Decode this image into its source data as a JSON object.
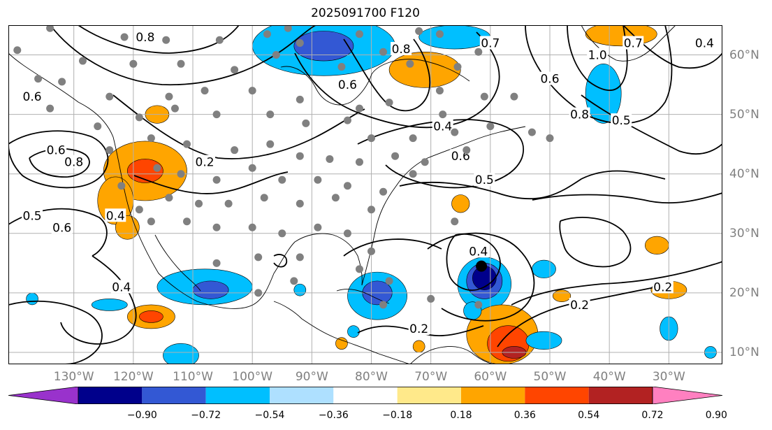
{
  "title": "2025091700 F120",
  "lon_labels": [
    {
      "text": "130°W",
      "lon": -130
    },
    {
      "text": "120°W",
      "lon": -120
    },
    {
      "text": "110°W",
      "lon": -110
    },
    {
      "text": "100°W",
      "lon": -100
    },
    {
      "text": "90°W",
      "lon": -90
    },
    {
      "text": "80°W",
      "lon": -80
    },
    {
      "text": "70°W",
      "lon": -70
    },
    {
      "text": "60°W",
      "lon": -60
    },
    {
      "text": "50°W",
      "lon": -50
    },
    {
      "text": "40°W",
      "lon": -40
    },
    {
      "text": "30°W",
      "lon": -30
    }
  ],
  "lat_labels": [
    {
      "text": "60°N",
      "lat": 60
    },
    {
      "text": "50°N",
      "lat": 50
    },
    {
      "text": "40°N",
      "lat": 40
    },
    {
      "text": "30°N",
      "lat": 30
    },
    {
      "text": "20°N",
      "lat": 20
    },
    {
      "text": "10°N",
      "lat": 10
    }
  ],
  "map_extent": {
    "lon_min": -141,
    "lon_max": -21,
    "lat_min": 8,
    "lat_max": 65
  },
  "contour_labels": [
    {
      "text": "0.8",
      "lon": -118,
      "lat": 63
    },
    {
      "text": "0.6",
      "lon": -133,
      "lat": 44
    },
    {
      "text": "0.8",
      "lon": -130,
      "lat": 42
    },
    {
      "text": "0.5",
      "lon": -137,
      "lat": 33
    },
    {
      "text": "0.6",
      "lon": -132,
      "lat": 31
    },
    {
      "text": "0.6",
      "lon": -137,
      "lat": 53
    },
    {
      "text": "0.4",
      "lon": -123,
      "lat": 33
    },
    {
      "text": "0.4",
      "lon": -122,
      "lat": 21
    },
    {
      "text": "0.2",
      "lon": -108,
      "lat": 42
    },
    {
      "text": "0.6",
      "lon": -84,
      "lat": 55
    },
    {
      "text": "0.8",
      "lon": -75,
      "lat": 61
    },
    {
      "text": "0.4",
      "lon": -68,
      "lat": 48
    },
    {
      "text": "0.6",
      "lon": -65,
      "lat": 43
    },
    {
      "text": "0.5",
      "lon": -61,
      "lat": 39
    },
    {
      "text": "0.4",
      "lon": -62,
      "lat": 27
    },
    {
      "text": "0.2",
      "lon": -72,
      "lat": 14
    },
    {
      "text": "0.2",
      "lon": -45,
      "lat": 18
    },
    {
      "text": "0.7",
      "lon": -60,
      "lat": 62
    },
    {
      "text": "0.6",
      "lon": -50,
      "lat": 56
    },
    {
      "text": "0.8",
      "lon": -45,
      "lat": 50
    },
    {
      "text": "0.5",
      "lon": -38,
      "lat": 49
    },
    {
      "text": "1.0",
      "lon": -42,
      "lat": 60
    },
    {
      "text": "0.7",
      "lon": -36,
      "lat": 62
    },
    {
      "text": "0.4",
      "lon": -24,
      "lat": 62
    },
    {
      "text": "0.2",
      "lon": -31,
      "lat": 21
    }
  ],
  "colorbar": {
    "ticks": [
      "−0.90",
      "−0.72",
      "−0.54",
      "−0.36",
      "−0.18",
      "0.18",
      "0.36",
      "0.54",
      "0.72",
      "0.90"
    ],
    "colors": [
      "#9932cc",
      "#00008b",
      "#3358d4",
      "#00bfff",
      "#aee0ff",
      "#ffffff",
      "#ffe98a",
      "#ffa500",
      "#ff4500",
      "#b22222",
      "#ff80c0"
    ]
  },
  "shading": [
    {
      "lon": -88,
      "lat": 61.5,
      "rx": 12,
      "ry": 5,
      "color": "#00bfff"
    },
    {
      "lon": -88,
      "lat": 61.5,
      "rx": 5,
      "ry": 2.5,
      "color": "#3358d4"
    },
    {
      "lon": -66,
      "lat": 63,
      "rx": 6,
      "ry": 2,
      "color": "#00bfff"
    },
    {
      "lon": -71,
      "lat": 57.5,
      "rx": 6,
      "ry": 3,
      "color": "#ffa500"
    },
    {
      "lon": -38,
      "lat": 63.5,
      "rx": 6,
      "ry": 2,
      "color": "#ffa500"
    },
    {
      "lon": -41,
      "lat": 53.5,
      "rx": 3,
      "ry": 5,
      "color": "#00bfff"
    },
    {
      "lon": -118,
      "lat": 40.5,
      "rx": 7,
      "ry": 5,
      "color": "#ffa500"
    },
    {
      "lon": -118,
      "lat": 40.5,
      "rx": 3,
      "ry": 2,
      "color": "#ff4500"
    },
    {
      "lon": -116,
      "lat": 50,
      "rx": 2,
      "ry": 1.5,
      "color": "#ffa500"
    },
    {
      "lon": -123,
      "lat": 35.5,
      "rx": 3,
      "ry": 4,
      "color": "#ffa500"
    },
    {
      "lon": -121,
      "lat": 31,
      "rx": 2,
      "ry": 2,
      "color": "#ffa500"
    },
    {
      "lon": -108,
      "lat": 21,
      "rx": 8,
      "ry": 3,
      "color": "#00bfff"
    },
    {
      "lon": -107,
      "lat": 20.5,
      "rx": 3,
      "ry": 1.5,
      "color": "#3358d4"
    },
    {
      "lon": -117,
      "lat": 16,
      "rx": 4,
      "ry": 2,
      "color": "#ffa500"
    },
    {
      "lon": -117,
      "lat": 16,
      "rx": 2,
      "ry": 1,
      "color": "#ff4500"
    },
    {
      "lon": -112,
      "lat": 9.5,
      "rx": 3,
      "ry": 2,
      "color": "#00bfff"
    },
    {
      "lon": -124,
      "lat": 18,
      "rx": 3,
      "ry": 1,
      "color": "#00bfff"
    },
    {
      "lon": -137,
      "lat": 19,
      "rx": 1,
      "ry": 1,
      "color": "#00bfff"
    },
    {
      "lon": -79,
      "lat": 19.5,
      "rx": 5,
      "ry": 4,
      "color": "#00bfff"
    },
    {
      "lon": -79,
      "lat": 20,
      "rx": 2.5,
      "ry": 2,
      "color": "#3358d4"
    },
    {
      "lon": -61,
      "lat": 21.5,
      "rx": 4.5,
      "ry": 4.5,
      "color": "#00bfff"
    },
    {
      "lon": -61,
      "lat": 22,
      "rx": 3,
      "ry": 3,
      "color": "#3358d4"
    },
    {
      "lon": -61,
      "lat": 22.5,
      "rx": 2,
      "ry": 2,
      "color": "#00008b"
    },
    {
      "lon": -58,
      "lat": 13,
      "rx": 6,
      "ry": 5,
      "color": "#ffa500"
    },
    {
      "lon": -57,
      "lat": 11.5,
      "rx": 3.5,
      "ry": 3,
      "color": "#ff4500"
    },
    {
      "lon": -56,
      "lat": 10,
      "rx": 2,
      "ry": 1,
      "color": "#b22222"
    },
    {
      "lon": -63,
      "lat": 17,
      "rx": 1.5,
      "ry": 1.5,
      "color": "#00bfff"
    },
    {
      "lon": -51,
      "lat": 24,
      "rx": 2,
      "ry": 1.5,
      "color": "#00bfff"
    },
    {
      "lon": -51,
      "lat": 12,
      "rx": 3,
      "ry": 1.5,
      "color": "#00bfff"
    },
    {
      "lon": -32,
      "lat": 28,
      "rx": 2,
      "ry": 1.5,
      "color": "#ffa500"
    },
    {
      "lon": -30,
      "lat": 20.5,
      "rx": 3,
      "ry": 1.5,
      "color": "#ffa500"
    },
    {
      "lon": -30,
      "lat": 14,
      "rx": 1.5,
      "ry": 2,
      "color": "#00bfff"
    },
    {
      "lon": -65,
      "lat": 35,
      "rx": 1.5,
      "ry": 1.5,
      "color": "#ffa500"
    },
    {
      "lon": -92,
      "lat": 20.5,
      "rx": 1,
      "ry": 1,
      "color": "#00bfff"
    },
    {
      "lon": -83,
      "lat": 13.5,
      "rx": 1,
      "ry": 1,
      "color": "#00bfff"
    },
    {
      "lon": -85,
      "lat": 11.5,
      "rx": 1,
      "ry": 1,
      "color": "#ffa500"
    },
    {
      "lon": -72,
      "lat": 11,
      "rx": 1,
      "ry": 1,
      "color": "#ffa500"
    },
    {
      "lon": -48,
      "lat": 19.5,
      "rx": 1.5,
      "ry": 1,
      "color": "#ffa500"
    },
    {
      "lon": -23,
      "lat": 10,
      "rx": 1,
      "ry": 1,
      "color": "#00bfff"
    }
  ],
  "stations": [
    [
      -139.5,
      60.8
    ],
    [
      -134,
      64.5
    ],
    [
      -121.5,
      63
    ],
    [
      -114.5,
      62.5
    ],
    [
      -105.5,
      62.5
    ],
    [
      -97.5,
      63.5
    ],
    [
      -94,
      64.5
    ],
    [
      -92,
      62
    ],
    [
      -82,
      63.5
    ],
    [
      -78,
      60.5
    ],
    [
      -72,
      64
    ],
    [
      -68.5,
      63.5
    ],
    [
      -128.5,
      59
    ],
    [
      -120,
      58.5
    ],
    [
      -112,
      58.5
    ],
    [
      -103,
      57.5
    ],
    [
      -96,
      60
    ],
    [
      -85,
      58
    ],
    [
      -73.5,
      58.5
    ],
    [
      -65.5,
      58
    ],
    [
      -136,
      56
    ],
    [
      -132,
      55.5
    ],
    [
      -124,
      53
    ],
    [
      -114,
      53
    ],
    [
      -108,
      54
    ],
    [
      -100,
      54
    ],
    [
      -92,
      52.5
    ],
    [
      -82,
      51
    ],
    [
      -77,
      52
    ],
    [
      -68.5,
      54
    ],
    [
      -61,
      53
    ],
    [
      -56,
      53
    ],
    [
      -134,
      51
    ],
    [
      -126,
      48
    ],
    [
      -119,
      49.5
    ],
    [
      -113,
      51
    ],
    [
      -106,
      50
    ],
    [
      -97,
      50
    ],
    [
      -91,
      48.5
    ],
    [
      -84,
      49
    ],
    [
      -80,
      46
    ],
    [
      -73,
      46
    ],
    [
      -66,
      47
    ],
    [
      -60,
      48
    ],
    [
      -53,
      47
    ],
    [
      -124,
      44
    ],
    [
      -117,
      46
    ],
    [
      -111,
      45
    ],
    [
      -103,
      44
    ],
    [
      -97,
      45
    ],
    [
      -92,
      43
    ],
    [
      -87,
      42.5
    ],
    [
      -82,
      42
    ],
    [
      -76,
      43
    ],
    [
      -71,
      42
    ],
    [
      -64,
      44
    ],
    [
      -122,
      38
    ],
    [
      -116,
      41
    ],
    [
      -112,
      40
    ],
    [
      -106,
      39
    ],
    [
      -100,
      41
    ],
    [
      -95,
      39
    ],
    [
      -89,
      39
    ],
    [
      -84,
      38
    ],
    [
      -78,
      37
    ],
    [
      -73,
      40
    ],
    [
      -119,
      34
    ],
    [
      -114,
      36
    ],
    [
      -109,
      35
    ],
    [
      -104,
      35
    ],
    [
      -98,
      36
    ],
    [
      -92,
      35
    ],
    [
      -86,
      36
    ],
    [
      -80,
      34
    ],
    [
      -117,
      32
    ],
    [
      -111,
      32
    ],
    [
      -106,
      31
    ],
    [
      -100,
      31
    ],
    [
      -95,
      30
    ],
    [
      -89,
      31
    ],
    [
      -84,
      30
    ],
    [
      -80,
      27
    ],
    [
      -106,
      25
    ],
    [
      -99,
      26
    ],
    [
      -92,
      26
    ],
    [
      -82,
      24
    ],
    [
      -77,
      22
    ],
    [
      -70,
      19
    ],
    [
      -62,
      18
    ],
    [
      -66,
      32
    ],
    [
      -93,
      22
    ],
    [
      -99,
      20
    ],
    [
      -78,
      18
    ],
    [
      -62,
      60.5
    ],
    [
      -68,
      50
    ],
    [
      -50,
      46
    ]
  ],
  "cyclone_center": {
    "lon": -61.5,
    "lat": 24.5
  }
}
